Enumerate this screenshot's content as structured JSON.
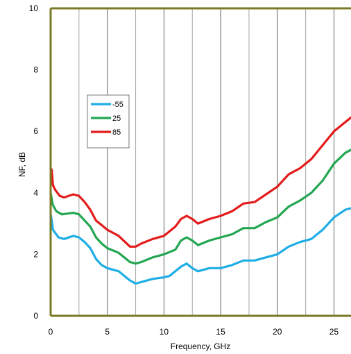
{
  "chart_data": {
    "type": "line",
    "title": "",
    "xlabel": "Frequency, GHz",
    "ylabel": "NF, dB",
    "xlim": [
      0,
      26.5
    ],
    "ylim": [
      0,
      10
    ],
    "xticks": [
      0,
      5,
      10,
      15,
      20,
      25
    ],
    "yticks": [
      0,
      2,
      4,
      6,
      8,
      10
    ],
    "xtick_labels": [
      "0",
      "5",
      "10",
      "15",
      "20",
      "25"
    ],
    "ytick_labels": [
      "0",
      "2",
      "4",
      "6",
      "8",
      "10"
    ],
    "grid": "vertical",
    "legend": "left",
    "colors": {
      "plot_border": "#7a7a26",
      "grid": "#a8a8a8",
      "grid_major": "#606060"
    },
    "series": [
      {
        "name": "-55",
        "color": "#1eaee6",
        "points": [
          [
            0,
            3.3
          ],
          [
            0.1,
            3.1
          ],
          [
            0.2,
            2.8
          ],
          [
            0.4,
            2.7
          ],
          [
            0.7,
            2.55
          ],
          [
            1.2,
            2.5
          ],
          [
            2,
            2.6
          ],
          [
            2.5,
            2.55
          ],
          [
            3,
            2.4
          ],
          [
            3.5,
            2.2
          ],
          [
            4,
            1.85
          ],
          [
            4.5,
            1.65
          ],
          [
            5,
            1.55
          ],
          [
            6,
            1.45
          ],
          [
            7,
            1.15
          ],
          [
            7.5,
            1.05
          ],
          [
            8,
            1.1
          ],
          [
            9,
            1.2
          ],
          [
            10,
            1.25
          ],
          [
            10.5,
            1.3
          ],
          [
            11,
            1.45
          ],
          [
            11.5,
            1.6
          ],
          [
            12,
            1.7
          ],
          [
            12.5,
            1.55
          ],
          [
            13,
            1.45
          ],
          [
            14,
            1.55
          ],
          [
            15,
            1.55
          ],
          [
            16,
            1.65
          ],
          [
            17,
            1.8
          ],
          [
            18,
            1.8
          ],
          [
            19,
            1.9
          ],
          [
            20,
            2.0
          ],
          [
            21,
            2.25
          ],
          [
            22,
            2.4
          ],
          [
            23,
            2.5
          ],
          [
            24,
            2.8
          ],
          [
            25,
            3.2
          ],
          [
            26,
            3.45
          ],
          [
            26.5,
            3.5
          ]
        ]
      },
      {
        "name": "25",
        "color": "#23a651",
        "points": [
          [
            0,
            4.0
          ],
          [
            0.1,
            3.8
          ],
          [
            0.2,
            3.6
          ],
          [
            0.5,
            3.4
          ],
          [
            1,
            3.3
          ],
          [
            2,
            3.35
          ],
          [
            2.5,
            3.3
          ],
          [
            3,
            3.1
          ],
          [
            3.5,
            2.9
          ],
          [
            4,
            2.55
          ],
          [
            4.5,
            2.35
          ],
          [
            5,
            2.2
          ],
          [
            6,
            2.05
          ],
          [
            7,
            1.75
          ],
          [
            7.5,
            1.7
          ],
          [
            8,
            1.75
          ],
          [
            9,
            1.9
          ],
          [
            10,
            2.0
          ],
          [
            11,
            2.15
          ],
          [
            11.5,
            2.45
          ],
          [
            12,
            2.55
          ],
          [
            12.5,
            2.45
          ],
          [
            13,
            2.3
          ],
          [
            14,
            2.45
          ],
          [
            15,
            2.55
          ],
          [
            16,
            2.65
          ],
          [
            17,
            2.85
          ],
          [
            18,
            2.85
          ],
          [
            19,
            3.05
          ],
          [
            20,
            3.2
          ],
          [
            21,
            3.55
          ],
          [
            22,
            3.75
          ],
          [
            23,
            4.0
          ],
          [
            24,
            4.4
          ],
          [
            25,
            4.95
          ],
          [
            26,
            5.3
          ],
          [
            26.5,
            5.4
          ]
        ]
      },
      {
        "name": "85",
        "color": "#e31b1b",
        "points": [
          [
            0,
            4.8
          ],
          [
            0.1,
            4.75
          ],
          [
            0.2,
            4.25
          ],
          [
            0.4,
            4.1
          ],
          [
            0.8,
            3.9
          ],
          [
            1.2,
            3.85
          ],
          [
            2,
            3.95
          ],
          [
            2.5,
            3.9
          ],
          [
            3,
            3.7
          ],
          [
            3.5,
            3.45
          ],
          [
            4,
            3.1
          ],
          [
            4.5,
            2.95
          ],
          [
            5,
            2.8
          ],
          [
            6,
            2.6
          ],
          [
            7,
            2.25
          ],
          [
            7.5,
            2.25
          ],
          [
            8,
            2.35
          ],
          [
            9,
            2.5
          ],
          [
            10,
            2.6
          ],
          [
            11,
            2.9
          ],
          [
            11.5,
            3.15
          ],
          [
            12,
            3.25
          ],
          [
            12.5,
            3.15
          ],
          [
            13,
            3.0
          ],
          [
            14,
            3.15
          ],
          [
            15,
            3.25
          ],
          [
            16,
            3.4
          ],
          [
            17,
            3.65
          ],
          [
            18,
            3.7
          ],
          [
            19,
            3.95
          ],
          [
            20,
            4.2
          ],
          [
            21,
            4.6
          ],
          [
            22,
            4.8
          ],
          [
            23,
            5.1
          ],
          [
            24,
            5.55
          ],
          [
            25,
            6.0
          ],
          [
            26,
            6.3
          ],
          [
            26.5,
            6.45
          ]
        ]
      }
    ]
  }
}
